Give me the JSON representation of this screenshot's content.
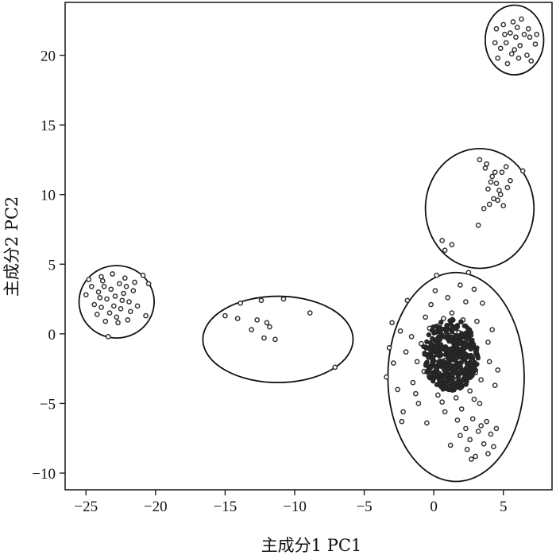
{
  "chart_data": {
    "type": "scatter",
    "title": "",
    "xlabel": "主成分1 PC1",
    "ylabel": "主成分2 PC2",
    "xlim": [
      -26.5,
      8.5
    ],
    "ylim": [
      -11.2,
      23.8
    ],
    "x_ticks": [
      -25,
      -20,
      -15,
      -10,
      -5,
      0,
      5
    ],
    "y_ticks": [
      -10,
      -5,
      0,
      5,
      10,
      15,
      20
    ],
    "x_tick_labels": [
      "−25",
      "−20",
      "−15",
      "−10",
      "−5",
      "0",
      "5"
    ],
    "y_tick_labels": [
      "−10",
      "−5",
      "0",
      "5",
      "10",
      "15",
      "20"
    ],
    "grid": false,
    "legend": "none",
    "point_color": "#333333",
    "clusters": [
      {
        "center": [
          -22.8,
          2.3
        ],
        "radii": [
          2.7,
          2.6
        ],
        "points": [
          [
            -23.8,
            3.8
          ],
          [
            -23.2,
            3.2
          ],
          [
            -22.6,
            3.6
          ],
          [
            -23.5,
            2.5
          ],
          [
            -22.3,
            2.9
          ],
          [
            -24.1,
            3.0
          ],
          [
            -23.0,
            2.0
          ],
          [
            -22.5,
            1.8
          ],
          [
            -23.3,
            1.5
          ],
          [
            -24.4,
            2.1
          ],
          [
            -22.8,
            1.2
          ],
          [
            -21.9,
            2.3
          ],
          [
            -21.6,
            3.1
          ],
          [
            -22.2,
            4.0
          ],
          [
            -23.9,
            4.1
          ],
          [
            -24.6,
            3.4
          ],
          [
            -21.3,
            2.0
          ],
          [
            -22.0,
            1.0
          ],
          [
            -23.6,
            0.9
          ],
          [
            -24.2,
            1.4
          ],
          [
            -20.9,
            4.2
          ],
          [
            -20.5,
            3.6
          ],
          [
            -20.7,
            1.3
          ],
          [
            -25.0,
            2.8
          ],
          [
            -23.4,
            -0.2
          ],
          [
            -22.9,
            2.7
          ],
          [
            -23.7,
            3.4
          ],
          [
            -22.4,
            2.4
          ],
          [
            -21.8,
            1.6
          ],
          [
            -24.0,
            2.6
          ],
          [
            -22.1,
            3.4
          ],
          [
            -23.1,
            4.3
          ],
          [
            -21.5,
            3.7
          ],
          [
            -22.7,
            0.8
          ],
          [
            -23.9,
            1.9
          ],
          [
            -24.8,
            3.9
          ]
        ]
      },
      {
        "center": [
          -11.2,
          -0.4
        ],
        "radii": [
          5.4,
          3.1
        ],
        "points": [
          [
            -15.0,
            1.3
          ],
          [
            -13.9,
            2.2
          ],
          [
            -12.4,
            2.4
          ],
          [
            -10.8,
            2.5
          ],
          [
            -14.1,
            1.1
          ],
          [
            -12.7,
            1.0
          ],
          [
            -12.0,
            0.8
          ],
          [
            -11.8,
            0.5
          ],
          [
            -13.1,
            0.3
          ],
          [
            -11.4,
            -0.4
          ],
          [
            -12.2,
            -0.3
          ],
          [
            -8.9,
            1.5
          ],
          [
            -7.1,
            -2.4
          ]
        ]
      },
      {
        "center": [
          1.6,
          -3.1
        ],
        "radii": [
          4.9,
          7.5
        ],
        "points": [
          [
            0.2,
            -0.4
          ],
          [
            0.9,
            -1.1
          ],
          [
            1.5,
            -0.6
          ],
          [
            -0.4,
            -1.5
          ],
          [
            0.6,
            -2.2
          ],
          [
            1.2,
            -2.8
          ],
          [
            2.0,
            -1.7
          ],
          [
            -0.9,
            -0.7
          ],
          [
            0.4,
            0.6
          ],
          [
            1.8,
            0.1
          ],
          [
            2.4,
            -2.4
          ],
          [
            -1.2,
            -2.0
          ],
          [
            0.0,
            -3.1
          ],
          [
            1.0,
            -3.7
          ],
          [
            2.2,
            -3.3
          ],
          [
            2.8,
            -1.0
          ],
          [
            -1.6,
            -0.2
          ],
          [
            -0.6,
            1.2
          ],
          [
            1.3,
            1.5
          ],
          [
            2.1,
            1.0
          ],
          [
            3.0,
            -2.8
          ],
          [
            -2.0,
            -1.3
          ],
          [
            -1.5,
            -3.5
          ],
          [
            0.3,
            -4.4
          ],
          [
            1.6,
            -4.6
          ],
          [
            2.6,
            -4.1
          ],
          [
            3.4,
            -3.3
          ],
          [
            -2.4,
            0.2
          ],
          [
            -0.2,
            2.1
          ],
          [
            1.0,
            2.6
          ],
          [
            2.3,
            2.3
          ],
          [
            3.1,
            0.9
          ],
          [
            -2.9,
            -2.1
          ],
          [
            -2.6,
            -4.0
          ],
          [
            -1.1,
            -5.0
          ],
          [
            0.8,
            -5.6
          ],
          [
            2.0,
            -5.4
          ],
          [
            3.3,
            -5.0
          ],
          [
            4.0,
            -2.0
          ],
          [
            -3.0,
            0.8
          ],
          [
            -1.9,
            2.4
          ],
          [
            0.1,
            3.1
          ],
          [
            1.9,
            3.5
          ],
          [
            3.5,
            2.2
          ],
          [
            3.9,
            -0.6
          ],
          [
            -2.2,
            -5.6
          ],
          [
            4.4,
            -3.7
          ],
          [
            2.9,
            3.2
          ],
          [
            0.5,
            -0.1
          ],
          [
            1.1,
            -0.2
          ],
          [
            -0.7,
            -2.7
          ],
          [
            1.7,
            -1.3
          ],
          [
            0.8,
            -1.9
          ],
          [
            2.5,
            -0.3
          ],
          [
            1.4,
            -3.2
          ],
          [
            0.2,
            -2.5
          ],
          [
            -0.3,
            0.4
          ],
          [
            1.9,
            -2.1
          ],
          [
            0.7,
            1.1
          ],
          [
            3.8,
            -6.3
          ],
          [
            3.2,
            -7.0
          ],
          [
            2.6,
            -7.6
          ],
          [
            3.6,
            -7.9
          ],
          [
            2.4,
            -8.3
          ],
          [
            3.0,
            -8.8
          ],
          [
            4.1,
            -7.2
          ],
          [
            3.4,
            -6.6
          ],
          [
            2.8,
            -6.1
          ],
          [
            4.3,
            -8.1
          ],
          [
            1.9,
            -7.3
          ],
          [
            2.3,
            -6.8
          ],
          [
            3.9,
            -8.6
          ],
          [
            1.7,
            -6.2
          ],
          [
            4.5,
            -6.8
          ],
          [
            2.7,
            -9.0
          ],
          [
            0.2,
            4.2
          ],
          [
            2.5,
            4.4
          ],
          [
            -3.4,
            -3.1
          ],
          [
            -2.3,
            -6.3
          ],
          [
            4.6,
            -2.6
          ],
          [
            1.2,
            -8.0
          ],
          [
            -0.5,
            -6.4
          ],
          [
            2.9,
            -4.7
          ],
          [
            0.6,
            -4.9
          ],
          [
            -1.3,
            -4.3
          ],
          [
            4.2,
            0.3
          ],
          [
            -3.2,
            -1.0
          ],
          [
            1.4,
            0.5
          ],
          [
            0.0,
            -1.0
          ],
          [
            2.0,
            -3.8
          ]
        ]
      },
      {
        "center": [
          3.3,
          9.0
        ],
        "radii": [
          3.9,
          4.3
        ],
        "points": [
          [
            3.3,
            12.5
          ],
          [
            3.7,
            11.9
          ],
          [
            4.2,
            11.3
          ],
          [
            4.5,
            10.8
          ],
          [
            4.9,
            11.6
          ],
          [
            5.2,
            12.0
          ],
          [
            3.9,
            10.4
          ],
          [
            4.8,
            10.0
          ],
          [
            4.3,
            9.7
          ],
          [
            5.0,
            9.2
          ],
          [
            4.6,
            9.6
          ],
          [
            4.0,
            9.3
          ],
          [
            3.6,
            9.0
          ],
          [
            5.5,
            11.0
          ],
          [
            6.4,
            11.7
          ],
          [
            4.1,
            10.9
          ],
          [
            4.7,
            10.3
          ],
          [
            3.2,
            7.8
          ],
          [
            0.6,
            6.7
          ],
          [
            0.8,
            6.0
          ],
          [
            1.3,
            6.4
          ],
          [
            4.4,
            11.6
          ],
          [
            5.3,
            10.5
          ],
          [
            3.8,
            12.2
          ]
        ]
      },
      {
        "center": [
          5.8,
          21.1
        ],
        "radii": [
          2.1,
          2.5
        ],
        "points": [
          [
            4.5,
            21.9
          ],
          [
            5.0,
            22.2
          ],
          [
            5.5,
            21.6
          ],
          [
            6.0,
            22.0
          ],
          [
            6.5,
            21.5
          ],
          [
            6.9,
            21.3
          ],
          [
            7.3,
            20.8
          ],
          [
            5.2,
            20.9
          ],
          [
            5.8,
            20.4
          ],
          [
            6.2,
            20.7
          ],
          [
            4.8,
            20.5
          ],
          [
            5.6,
            20.1
          ],
          [
            6.7,
            20.0
          ],
          [
            7.0,
            19.6
          ],
          [
            4.6,
            19.8
          ],
          [
            5.3,
            19.4
          ],
          [
            6.3,
            22.6
          ],
          [
            5.9,
            21.3
          ],
          [
            7.4,
            21.5
          ],
          [
            5.1,
            21.5
          ],
          [
            6.1,
            19.8
          ],
          [
            4.4,
            20.9
          ],
          [
            5.7,
            22.4
          ],
          [
            6.8,
            21.9
          ]
        ]
      }
    ]
  }
}
